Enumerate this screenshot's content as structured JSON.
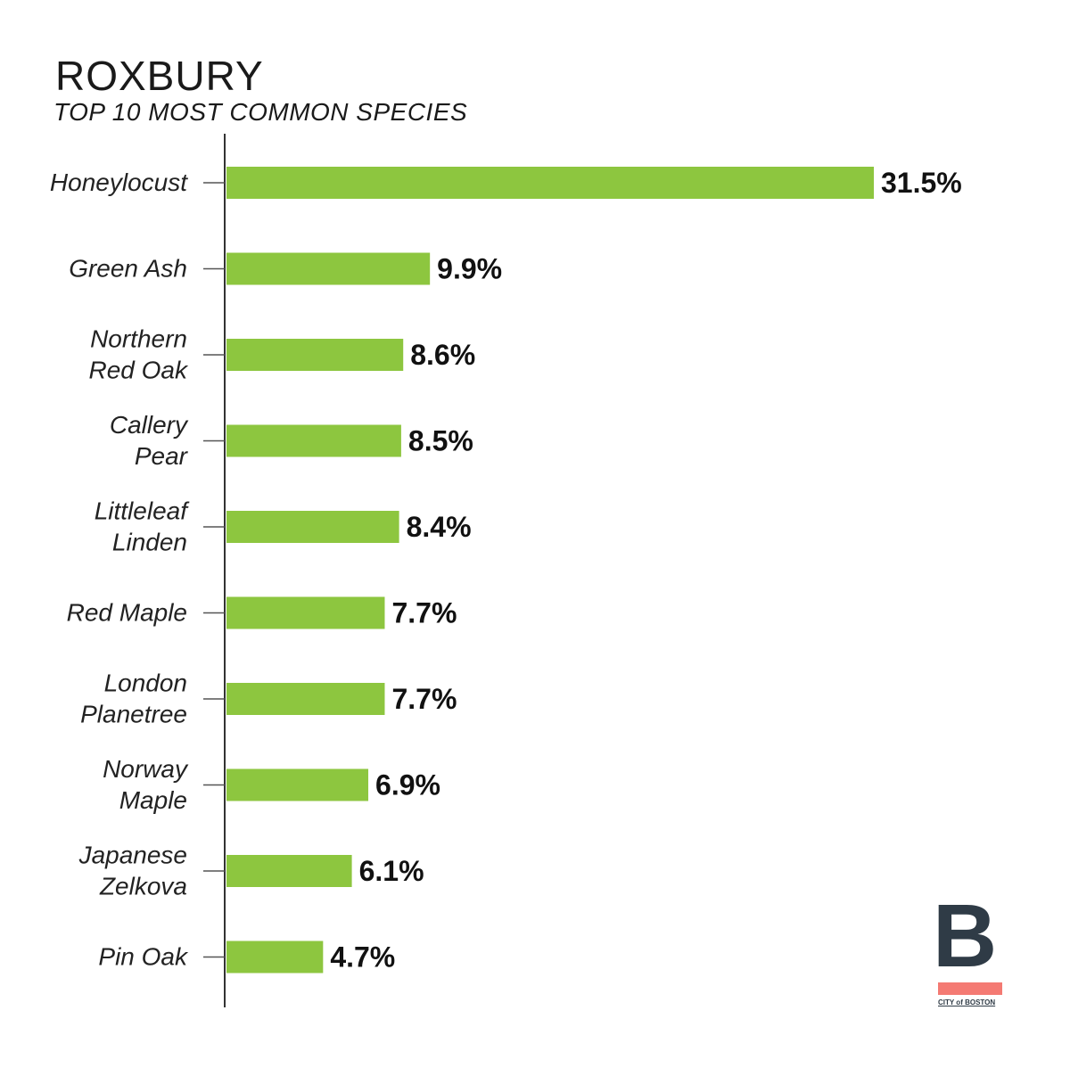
{
  "chart_data": {
    "type": "bar",
    "orientation": "horizontal",
    "title": "ROXBURY",
    "subtitle": "TOP 10 MOST COMMON SPECIES",
    "categories": [
      [
        "Honeylocust"
      ],
      [
        "Green Ash"
      ],
      [
        "Northern",
        "Red Oak"
      ],
      [
        "Callery",
        "Pear"
      ],
      [
        "Littleleaf",
        "Linden"
      ],
      [
        "Red Maple"
      ],
      [
        "London",
        "Planetree"
      ],
      [
        "Norway",
        "Maple"
      ],
      [
        "Japanese",
        "Zelkova"
      ],
      [
        "Pin Oak"
      ]
    ],
    "values": [
      31.5,
      9.9,
      8.6,
      8.5,
      8.4,
      7.7,
      7.7,
      6.9,
      6.1,
      4.7
    ],
    "value_labels": [
      "31.5%",
      "9.9%",
      "8.6%",
      "8.5%",
      "8.4%",
      "7.7%",
      "7.7%",
      "6.9%",
      "6.1%",
      "4.7%"
    ],
    "bar_color": "#8dc63f",
    "axis_color": "#333333"
  },
  "logo": {
    "letter": "B",
    "text": "CITY of BOSTON",
    "accent_color": "#f47a73",
    "dark_color": "#2f3b46"
  }
}
